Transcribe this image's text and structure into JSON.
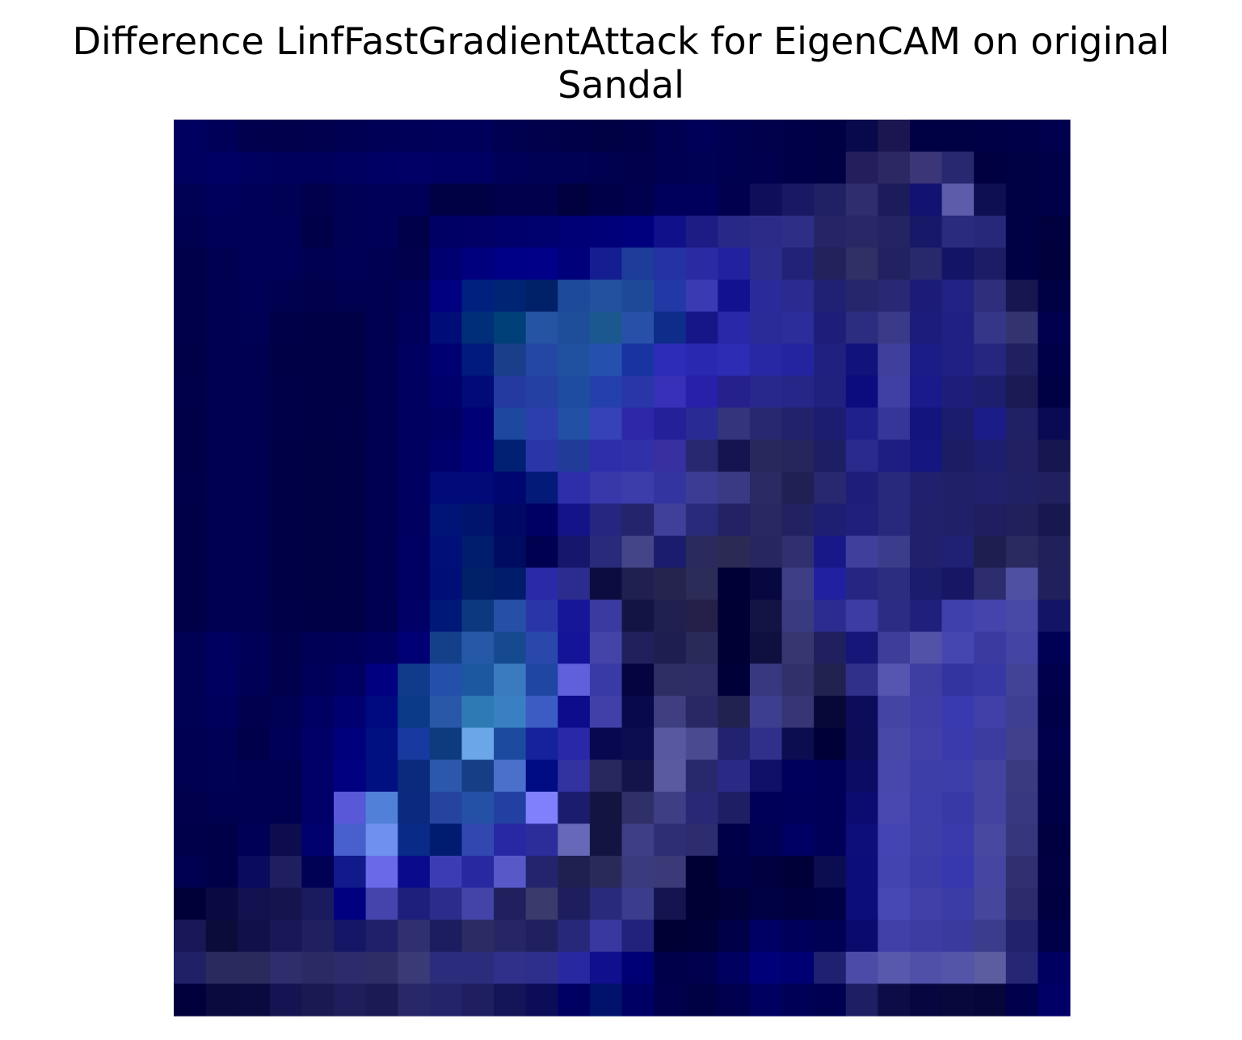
{
  "figure": {
    "title_line1": "Difference LinfFastGradientAttack for EigenCAM on original",
    "title_line2": "Sandal"
  },
  "chart_data": {
    "type": "heatmap",
    "title": "Difference LinfFastGradientAttack for EigenCAM on original Sandal",
    "rows": 28,
    "cols": 28,
    "axes_visible": false,
    "grid": false,
    "legend": "none",
    "pixels": [
      [
        "#000060",
        "#000058",
        "#00004E",
        "#00004C",
        "#00004E",
        "#000052",
        "#000056",
        "#000058",
        "#00005A",
        "#00005A",
        "#000050",
        "#00004C",
        "#000048",
        "#000044",
        "#000048",
        "#000050",
        "#000058",
        "#000050",
        "#00004C",
        "#000048",
        "#000044",
        "#08084C",
        "#1C1650",
        "#000044",
        "#000044",
        "#000046",
        "#000048",
        "#00004E"
      ],
      [
        "#000060",
        "#000064",
        "#000060",
        "#00005C",
        "#00005C",
        "#000060",
        "#000064",
        "#000066",
        "#000062",
        "#000062",
        "#000058",
        "#000054",
        "#000054",
        "#000050",
        "#00004C",
        "#000050",
        "#000054",
        "#000050",
        "#00004E",
        "#000048",
        "#000044",
        "#241E5C",
        "#2C2864",
        "#3A3678",
        "#282870",
        "#000040",
        "#000044",
        "#000048"
      ],
      [
        "#000054",
        "#00005C",
        "#000058",
        "#000054",
        "#00004C",
        "#000054",
        "#000058",
        "#000058",
        "#000044",
        "#000044",
        "#00004C",
        "#00004C",
        "#00003E",
        "#000048",
        "#00004E",
        "#00005C",
        "#00005C",
        "#00004E",
        "#0E0E5A",
        "#181864",
        "#202064",
        "#2E2E6C",
        "#1C1C5C",
        "#121272",
        "#5C5CAA",
        "#0E0E52",
        "#000044",
        "#000048"
      ],
      [
        "#000050",
        "#000058",
        "#000058",
        "#000058",
        "#000048",
        "#000054",
        "#000058",
        "#00004A",
        "#000064",
        "#000066",
        "#00006C",
        "#00006E",
        "#000074",
        "#000078",
        "#00007E",
        "#10108A",
        "#1C1C84",
        "#282888",
        "#2C2C88",
        "#2E2E86",
        "#242466",
        "#282866",
        "#242462",
        "#181868",
        "#2A2A7E",
        "#28287A",
        "#000044",
        "#00003E"
      ],
      [
        "#00004A",
        "#000050",
        "#000058",
        "#000058",
        "#000050",
        "#000056",
        "#000052",
        "#00004C",
        "#000070",
        "#00007E",
        "#000086",
        "#000088",
        "#00007A",
        "#141E90",
        "#1E3C9A",
        "#2432A2",
        "#2A2AA2",
        "#2222A0",
        "#2C2C8C",
        "#222278",
        "#22225C",
        "#303066",
        "#222260",
        "#28286C",
        "#141466",
        "#1C1C66",
        "#000044",
        "#00003C"
      ],
      [
        "#00004A",
        "#000050",
        "#000056",
        "#000050",
        "#00004C",
        "#000050",
        "#000050",
        "#000058",
        "#000080",
        "#002080",
        "#002474",
        "#002068",
        "#1E4A9C",
        "#2450A0",
        "#1E4898",
        "#2238A4",
        "#3A3AB2",
        "#121290",
        "#2A2A9A",
        "#2A2A90",
        "#202074",
        "#26266C",
        "#282874",
        "#1C1C78",
        "#222284",
        "#2E2E7C",
        "#161650",
        "#000044"
      ],
      [
        "#00004A",
        "#000050",
        "#000054",
        "#000048",
        "#000046",
        "#000046",
        "#000050",
        "#00005C",
        "#000C78",
        "#002E78",
        "#004078",
        "#2654A4",
        "#1E4E9A",
        "#1C5890",
        "#2850A8",
        "#0E2C8A",
        "#161688",
        "#2828A8",
        "#2A2A98",
        "#2C2C9A",
        "#1E1E7A",
        "#2C2C80",
        "#3A3A88",
        "#1C1C7C",
        "#202084",
        "#363688",
        "#333370",
        "#00004E"
      ],
      [
        "#000048",
        "#000050",
        "#000050",
        "#000046",
        "#000046",
        "#000046",
        "#000050",
        "#000060",
        "#000072",
        "#001A7E",
        "#1A3E8A",
        "#2446A4",
        "#1E52A0",
        "#2650AE",
        "#1834A0",
        "#2C2CB8",
        "#2828B0",
        "#2C2CB4",
        "#2828A4",
        "#2424A0",
        "#202080",
        "#12127C",
        "#40409C",
        "#1C1C88",
        "#202084",
        "#262680",
        "#202060",
        "#000048"
      ],
      [
        "#00004A",
        "#000050",
        "#000050",
        "#000048",
        "#000046",
        "#000046",
        "#000050",
        "#000060",
        "#00006C",
        "#000A78",
        "#243AA0",
        "#2440A2",
        "#1E4CA0",
        "#2440AA",
        "#2836A8",
        "#3830B8",
        "#2820A8",
        "#26208C",
        "#28288C",
        "#262688",
        "#20207E",
        "#0C0C7E",
        "#4040A4",
        "#1A1A8C",
        "#1E1E7A",
        "#1E1E6E",
        "#1A1A54",
        "#000044"
      ],
      [
        "#000048",
        "#000050",
        "#000050",
        "#000048",
        "#000046",
        "#000048",
        "#000050",
        "#000060",
        "#000064",
        "#000074",
        "#1E48A0",
        "#2C3EAE",
        "#2250A4",
        "#3642B8",
        "#2E28A8",
        "#24209A",
        "#2A2A94",
        "#34347C",
        "#282870",
        "#22226C",
        "#1C1C70",
        "#20208C",
        "#363698",
        "#14147E",
        "#1C1C6C",
        "#1C1C88",
        "#202064",
        "#0A0A54"
      ],
      [
        "#000048",
        "#000050",
        "#000050",
        "#000046",
        "#000044",
        "#000046",
        "#000050",
        "#000060",
        "#00006C",
        "#00007A",
        "#002074",
        "#2A36A8",
        "#203C98",
        "#2E2EAA",
        "#3030A8",
        "#3830A0",
        "#282870",
        "#141450",
        "#28285C",
        "#26265C",
        "#1E1E64",
        "#2A2A8C",
        "#1E1E82",
        "#161680",
        "#1C1C64",
        "#1E1E6E",
        "#202062",
        "#161650"
      ],
      [
        "#00004A",
        "#000050",
        "#000050",
        "#000046",
        "#000044",
        "#000046",
        "#000050",
        "#000060",
        "#000A78",
        "#000A78",
        "#000670",
        "#041A78",
        "#2E2EAA",
        "#3838AA",
        "#3C3CAA",
        "#3434A0",
        "#3C3C94",
        "#3A3A84",
        "#2A2A64",
        "#202054",
        "#282870",
        "#1E1E7A",
        "#28287C",
        "#20206E",
        "#202068",
        "#20206C",
        "#202064",
        "#20205E"
      ],
      [
        "#000048",
        "#000050",
        "#000050",
        "#000046",
        "#000044",
        "#000046",
        "#000050",
        "#000060",
        "#001478",
        "#00146E",
        "#000866",
        "#000064",
        "#141488",
        "#262680",
        "#24246C",
        "#40409A",
        "#2A2A7A",
        "#222264",
        "#282862",
        "#222262",
        "#1E1E72",
        "#20207C",
        "#28287C",
        "#20206C",
        "#202068",
        "#1E1E60",
        "#20205C",
        "#181850"
      ],
      [
        "#000048",
        "#000050",
        "#000050",
        "#000046",
        "#000044",
        "#000046",
        "#000050",
        "#000062",
        "#001078",
        "#001C6C",
        "#000C62",
        "#000050",
        "#16166C",
        "#2A2A7A",
        "#444488",
        "#1C1C6E",
        "#2A2A5E",
        "#2A2A54",
        "#262660",
        "#30306E",
        "#181888",
        "#40409C",
        "#3C3C8C",
        "#20206C",
        "#202074",
        "#1E1E50",
        "#2A2A60",
        "#20205A"
      ],
      [
        "#000048",
        "#000050",
        "#000050",
        "#000046",
        "#000044",
        "#000046",
        "#000050",
        "#000062",
        "#000E78",
        "#002068",
        "#001C6A",
        "#2A2AA8",
        "#2C2C8E",
        "#0C0C40",
        "#202050",
        "#24244E",
        "#2C2C58",
        "#000036",
        "#080840",
        "#3E3E86",
        "#2020A0",
        "#262682",
        "#2C2C80",
        "#1C1C6C",
        "#161664",
        "#2C2C6E",
        "#5050A2",
        "#20205C"
      ],
      [
        "#000048",
        "#000050",
        "#000050",
        "#000048",
        "#000046",
        "#000046",
        "#000050",
        "#000066",
        "#001878",
        "#0C3880",
        "#2650A8",
        "#2A36A8",
        "#161698",
        "#3A3AA0",
        "#141444",
        "#202050",
        "#24204A",
        "#000034",
        "#141444",
        "#3A3A80",
        "#2C2C90",
        "#3C3CA4",
        "#2C2C84",
        "#20207C",
        "#4040AC",
        "#4444AC",
        "#4848A6",
        "#141464"
      ],
      [
        "#000054",
        "#000060",
        "#000058",
        "#00004C",
        "#000056",
        "#000058",
        "#000060",
        "#000074",
        "#14408A",
        "#2658A8",
        "#164A90",
        "#2A48AC",
        "#141498",
        "#4444A8",
        "#20205C",
        "#1E1E50",
        "#2A2A58",
        "#000034",
        "#101040",
        "#363670",
        "#202060",
        "#161678",
        "#3E3E9A",
        "#5252A8",
        "#4646B0",
        "#3A3AA0",
        "#4444A4",
        "#000054"
      ],
      [
        "#000054",
        "#000060",
        "#000056",
        "#00004C",
        "#00005A",
        "#000062",
        "#000080",
        "#103A8A",
        "#2450AC",
        "#1C58A0",
        "#3A7ABE",
        "#2046A4",
        "#6060DC",
        "#3A3AA6",
        "#040440",
        "#2E2E64",
        "#2E2E66",
        "#000038",
        "#383880",
        "#30306A",
        "#222250",
        "#30308A",
        "#5656B0",
        "#3E3EA2",
        "#3434A0",
        "#3838A4",
        "#424296",
        "#00004C"
      ],
      [
        "#000054",
        "#00005C",
        "#00004E",
        "#000054",
        "#000062",
        "#000070",
        "#000A80",
        "#0A3A88",
        "#2A58A8",
        "#2E7AB4",
        "#3880C2",
        "#3C5CC4",
        "#0C0C8C",
        "#4040A8",
        "#08084C",
        "#3E3E80",
        "#282864",
        "#222250",
        "#3E3E90",
        "#363676",
        "#080838",
        "#0C0C5A",
        "#4444A4",
        "#3E3EA6",
        "#3A3AB0",
        "#4040A8",
        "#3E3E92",
        "#000048"
      ],
      [
        "#000050",
        "#000056",
        "#00004A",
        "#000058",
        "#000068",
        "#00007C",
        "#001080",
        "#183AA0",
        "#0E3A7E",
        "#6AA6E8",
        "#1C4A9E",
        "#16229C",
        "#2828A8",
        "#080850",
        "#0C0C50",
        "#5858A0",
        "#4A4A90",
        "#222270",
        "#30308A",
        "#0C0C50",
        "#000038",
        "#0C0C58",
        "#4848A8",
        "#4040A8",
        "#3A3AAC",
        "#3C3CA0",
        "#40408C",
        "#00004C"
      ],
      [
        "#000050",
        "#000054",
        "#000050",
        "#000050",
        "#000068",
        "#000080",
        "#001080",
        "#0A2A7E",
        "#2C58AC",
        "#163E86",
        "#4A70CC",
        "#000C84",
        "#3232A0",
        "#28285E",
        "#14144A",
        "#5A5AA0",
        "#28286C",
        "#2A2A86",
        "#101068",
        "#00005C",
        "#000058",
        "#0C0C64",
        "#4848AC",
        "#3E3EA8",
        "#3E3EAA",
        "#4444A0",
        "#3A3A80",
        "#000048"
      ],
      [
        "#00004C",
        "#000050",
        "#000050",
        "#000050",
        "#000068",
        "#5858D8",
        "#5080D8",
        "#0A2A80",
        "#2444A0",
        "#2450A6",
        "#2240A2",
        "#8080FC",
        "#1C1C6E",
        "#141440",
        "#303068",
        "#3E3E84",
        "#282876",
        "#1E1E64",
        "#000058",
        "#00005A",
        "#000058",
        "#0C0C70",
        "#4848B0",
        "#3E3EAA",
        "#3838A6",
        "#4444A0",
        "#383880",
        "#000046"
      ],
      [
        "#00004A",
        "#000048",
        "#000056",
        "#0C0C4E",
        "#00006E",
        "#4860CC",
        "#7090F0",
        "#0A2A88",
        "#001C70",
        "#3248B0",
        "#2828A4",
        "#2C2C9A",
        "#6868B8",
        "#141442",
        "#3E3E86",
        "#2E2E74",
        "#2C2C6E",
        "#000048",
        "#000054",
        "#000064",
        "#000058",
        "#0E0E7A",
        "#4444B4",
        "#3E3EA8",
        "#3A3AAC",
        "#4848A0",
        "#36367C",
        "#000040"
      ],
      [
        "#000050",
        "#000048",
        "#0A0A5E",
        "#1E1E60",
        "#000054",
        "#101A8A",
        "#6A6AE8",
        "#0A0A8C",
        "#3C3CB4",
        "#2828A0",
        "#5858C8",
        "#24246E",
        "#202050",
        "#2A2A5A",
        "#3A3A7E",
        "#3A3A78",
        "#000034",
        "#000046",
        "#000040",
        "#000038",
        "#0C0C50",
        "#0C0C7A",
        "#4444B0",
        "#3C3CA8",
        "#3838AE",
        "#4646A2",
        "#303070",
        "#000042"
      ],
      [
        "#000038",
        "#0A0A42",
        "#121250",
        "#14144E",
        "#1A1A5E",
        "#000080",
        "#4444AC",
        "#1E1E7C",
        "#2C2C8C",
        "#4444A8",
        "#20205E",
        "#3A3A6C",
        "#1E1E5E",
        "#2A2A7A",
        "#3C3C8C",
        "#141450",
        "#000034",
        "#00003A",
        "#000044",
        "#000040",
        "#000044",
        "#0C0C7A",
        "#4848B4",
        "#4040A8",
        "#3C3CA6",
        "#46469C",
        "#2C2C6C",
        "#000040"
      ],
      [
        "#181858",
        "#0C0C3A",
        "#10104A",
        "#181858",
        "#202060",
        "#161666",
        "#20206A",
        "#30306E",
        "#1C1C60",
        "#2C2C64",
        "#262664",
        "#20205E",
        "#28287A",
        "#3838A0",
        "#22227C",
        "#000034",
        "#000038",
        "#000048",
        "#000064",
        "#00005A",
        "#000054",
        "#0A0A6C",
        "#4040A8",
        "#3C3CA2",
        "#3A3A9E",
        "#3C3C8C",
        "#22226C",
        "#000048"
      ],
      [
        "#202066",
        "#2A2A5E",
        "#2A2A5C",
        "#2E2E6C",
        "#2A2A64",
        "#2C2C6C",
        "#2E2E66",
        "#3A3A76",
        "#2C2C7C",
        "#2C2C7C",
        "#30308A",
        "#2E2E8C",
        "#2828A0",
        "#10108E",
        "#000074",
        "#00004A",
        "#00004E",
        "#000060",
        "#000078",
        "#000072",
        "#202070",
        "#4C4CA8",
        "#5858AC",
        "#5050A8",
        "#5454A8",
        "#5C5CA0",
        "#262674",
        "#000060"
      ],
      [
        "#00003C",
        "#0A0A3E",
        "#0A0A40",
        "#141452",
        "#1A1A52",
        "#1E1E5C",
        "#1A1A54",
        "#282868",
        "#24246A",
        "#1E1E60",
        "#141458",
        "#0C0C58",
        "#000062",
        "#00126C",
        "#000064",
        "#00004C",
        "#000044",
        "#00004E",
        "#000060",
        "#000056",
        "#000050",
        "#1E1E64",
        "#0C0C48",
        "#060640",
        "#08083C",
        "#06063A",
        "#00004C",
        "#000066"
      ]
    ]
  }
}
